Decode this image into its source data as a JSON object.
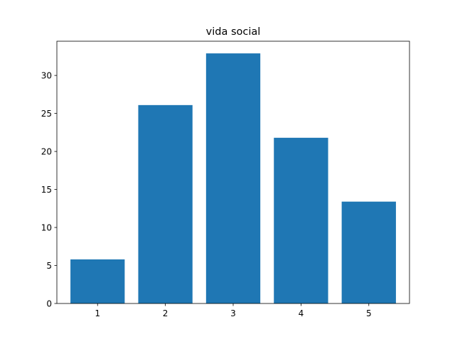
{
  "chart_data": {
    "type": "bar",
    "title": "vida social",
    "xlabel": "",
    "ylabel": "",
    "categories": [
      "1",
      "2",
      "3",
      "4",
      "5"
    ],
    "values": [
      5.8,
      26.1,
      32.9,
      21.8,
      13.4
    ],
    "ylim": [
      0,
      34.5
    ],
    "xlim": [
      0.4,
      5.6
    ],
    "yticks": [
      0,
      5,
      10,
      15,
      20,
      25,
      30
    ],
    "grid": false,
    "legend": "none",
    "bar_color": "#1f77b4"
  }
}
